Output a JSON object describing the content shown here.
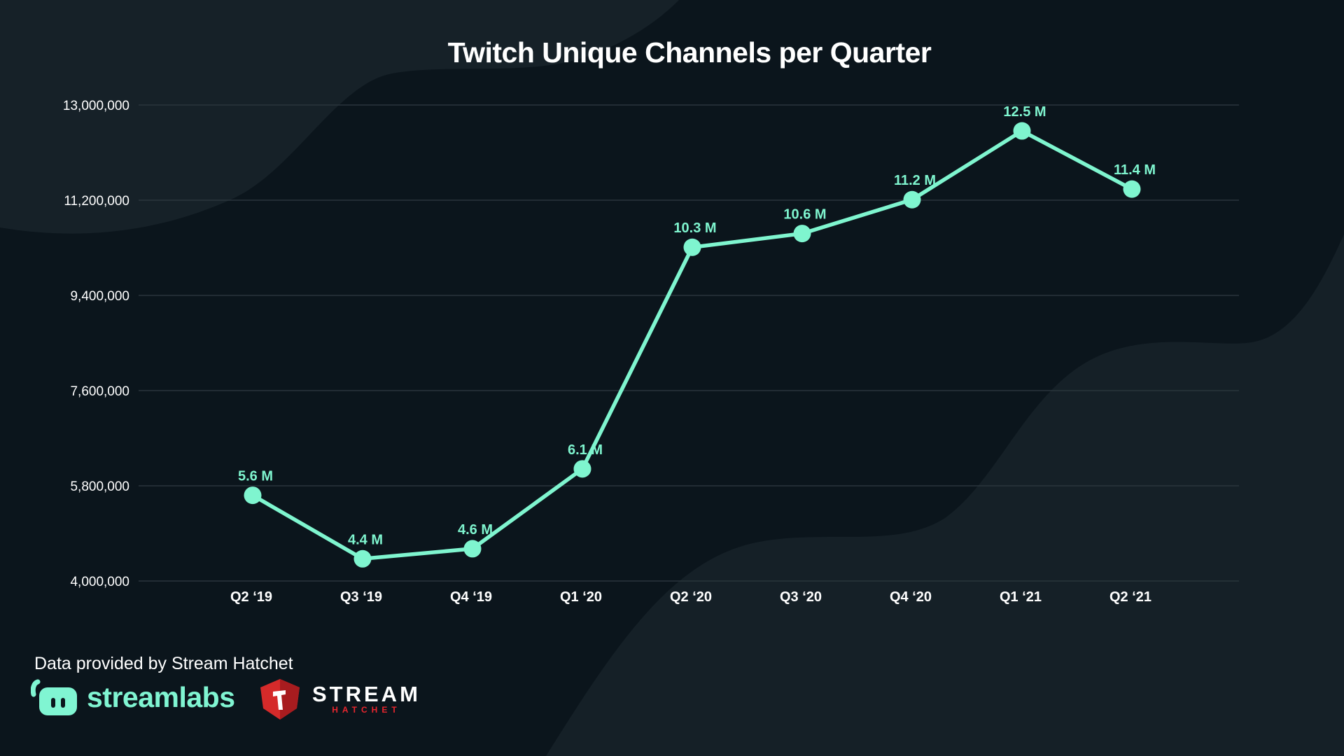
{
  "colors": {
    "background": "#0b151c",
    "accent": "#7ff5cf",
    "grid": "#2a353c",
    "text": "#ffffff"
  },
  "chart_data": {
    "type": "line",
    "title": "Twitch Unique Channels per Quarter",
    "xlabel": "",
    "ylabel": "",
    "categories": [
      "Q2 ‘19",
      "Q3 ‘19",
      "Q4 ‘19",
      "Q1 ‘20",
      "Q2 ‘20",
      "Q3 ‘20",
      "Q4 ‘20",
      "Q1 ‘21",
      "Q2 ‘21"
    ],
    "series": [
      {
        "values": [
          5620000,
          4420000,
          4610000,
          6120000,
          10310000,
          10570000,
          11210000,
          12510000,
          11410000
        ],
        "labels": [
          "5.6 M",
          "4.4 M",
          "4.6 M",
          "6.1 M",
          "10.3 M",
          "10.6 M",
          "11.2 M",
          "12.5 M",
          "11.4 M"
        ]
      }
    ],
    "ylim": [
      4000000,
      13000000
    ],
    "yticks": [
      4000000,
      5800000,
      7600000,
      9400000,
      11200000,
      13000000
    ],
    "ytick_labels": [
      "4,000,000",
      "5,800,000",
      "7,600,000",
      "9,400,000",
      "11,200,000",
      "13,000,000"
    ],
    "grid": true,
    "legend": "none"
  },
  "footer": {
    "note": "Data provided by Stream Hatchet",
    "logo_streamlabs": "streamlabs",
    "logo_hatchet_line1": "STREAM",
    "logo_hatchet_line2": "HATCHET"
  }
}
